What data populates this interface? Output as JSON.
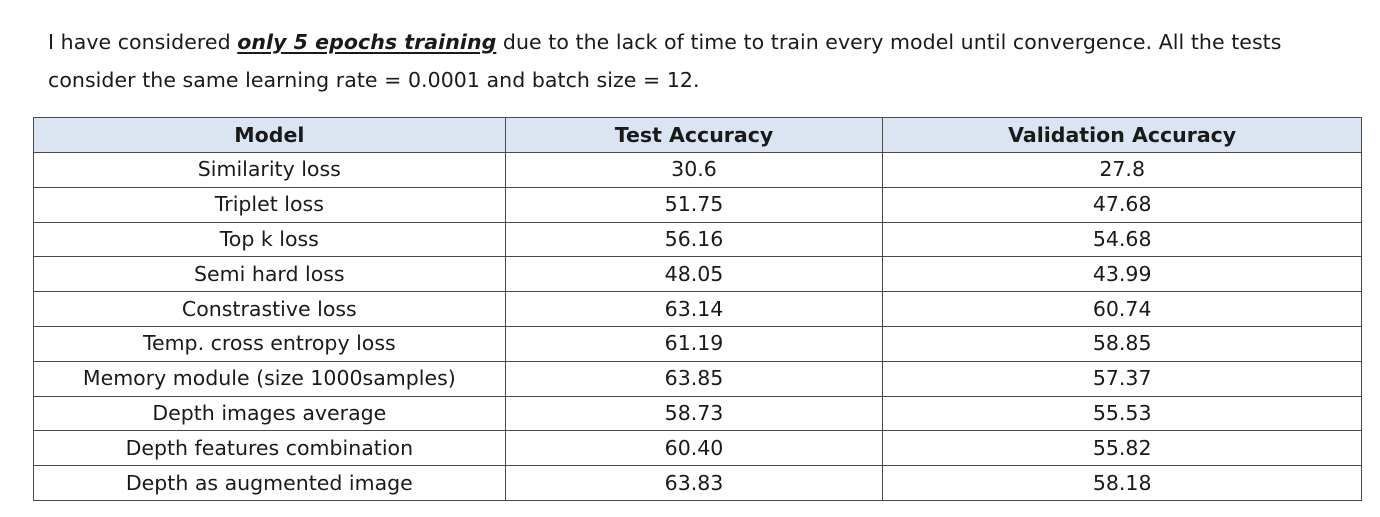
{
  "paragraph": {
    "text_before": "I have considered ",
    "emphasis": "only 5 epochs training",
    "text_after": " due to the lack of time to train every model until convergence. All the tests consider the same learning rate = 0.0001 and batch size = 12."
  },
  "table": {
    "headers": [
      "Model",
      "Test Accuracy",
      "Validation Accuracy"
    ],
    "rows": [
      [
        "Similarity loss",
        "30.6",
        "27.8"
      ],
      [
        "Triplet loss",
        "51.75",
        "47.68"
      ],
      [
        "Top k loss",
        "56.16",
        "54.68"
      ],
      [
        "Semi hard loss",
        "48.05",
        "43.99"
      ],
      [
        "Constrastive loss",
        "63.14",
        "60.74"
      ],
      [
        "Temp. cross entropy loss",
        "61.19",
        "58.85"
      ],
      [
        "Memory module (size 1000samples)",
        "63.85",
        "57.37"
      ],
      [
        "Depth images average",
        "58.73",
        "55.53"
      ],
      [
        "Depth features combination",
        "60.40",
        "55.82"
      ],
      [
        "Depth as augmented image",
        "63.83",
        "58.18"
      ]
    ]
  },
  "colors": {
    "header_background": "#dbe5f1",
    "border": "#4a4a4a",
    "text": "#1a1a1a"
  }
}
